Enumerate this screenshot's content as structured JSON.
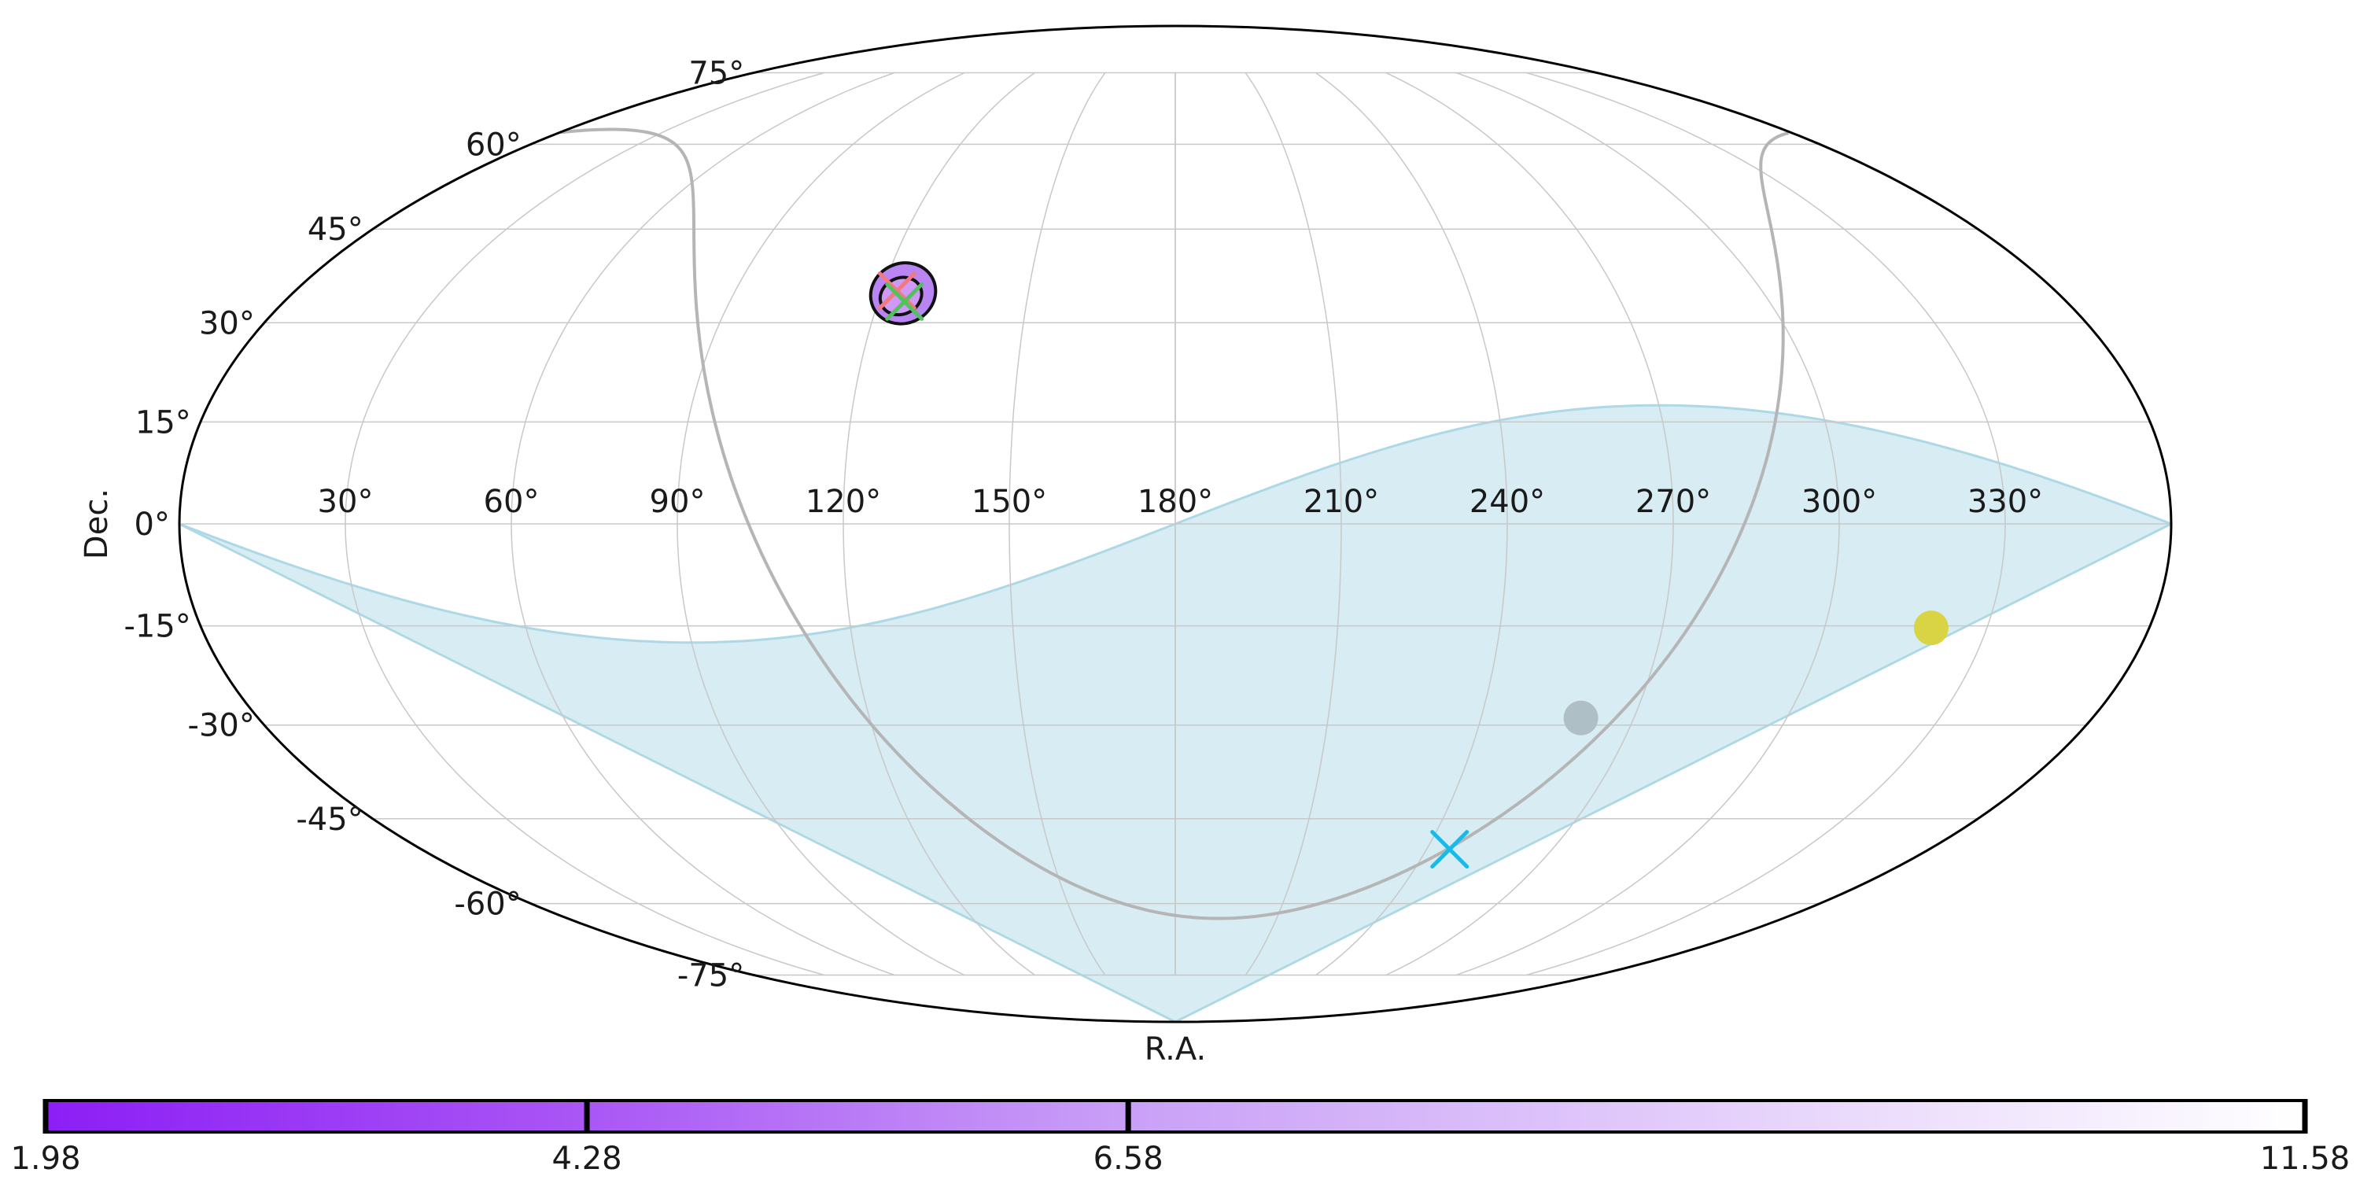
{
  "chart_data": {
    "type": "scatter",
    "projection": "mollweide",
    "title": "",
    "xlabel": "R.A.",
    "ylabel": "Dec.",
    "ra_ticks": [
      30,
      60,
      90,
      120,
      150,
      180,
      210,
      240,
      270,
      300,
      330
    ],
    "ra_tick_labels": [
      "30°",
      "60°",
      "90°",
      "120°",
      "150°",
      "180°",
      "210°",
      "240°",
      "270°",
      "300°",
      "330°"
    ],
    "dec_ticks": [
      75,
      60,
      45,
      30,
      15,
      0,
      -15,
      -30,
      -45,
      -60,
      -75
    ],
    "dec_tick_labels": [
      "75°",
      "60°",
      "45°",
      "30°",
      "15°",
      "0°",
      "-15°",
      "-30°",
      "-45°",
      "-60°",
      "-75°"
    ],
    "grid": true,
    "markers": [
      {
        "kind": "dot",
        "ra": 259.6,
        "dec": -28.9,
        "color": "#aebfc6"
      },
      {
        "kind": "dot",
        "ra": 319.7,
        "dec": -15.3,
        "color": "#d9d443"
      },
      {
        "kind": "x",
        "ra": 245.5,
        "dec": -50.2,
        "color": "#1ab9e6"
      },
      {
        "kind": "x",
        "ra": 123.1,
        "dec": 35.0,
        "color": "#f07a84"
      },
      {
        "kind": "x",
        "ra": 125.3,
        "dec": 33.3,
        "color": "#50c35a"
      }
    ],
    "galactic_plane": true,
    "galactic_plane_color": "#b5b5b5",
    "shaded_region_color": "#add8e6",
    "skymap_contours": {
      "center_ra": 124.5,
      "center_dec": 34.6,
      "fill_colors": [
        "#b885f2",
        "#ce99f7"
      ],
      "outline_color": "#111111"
    },
    "colorbar": {
      "min": 1.98,
      "max": 11.58,
      "ticks": [
        1.98,
        4.28,
        6.58,
        11.58
      ],
      "tick_labels": [
        "1.98",
        "4.28",
        "6.58",
        "11.58"
      ],
      "colors": [
        "#8c1ef5",
        "#aa57f5",
        "#c9a0f7",
        "#ffffff"
      ]
    }
  }
}
